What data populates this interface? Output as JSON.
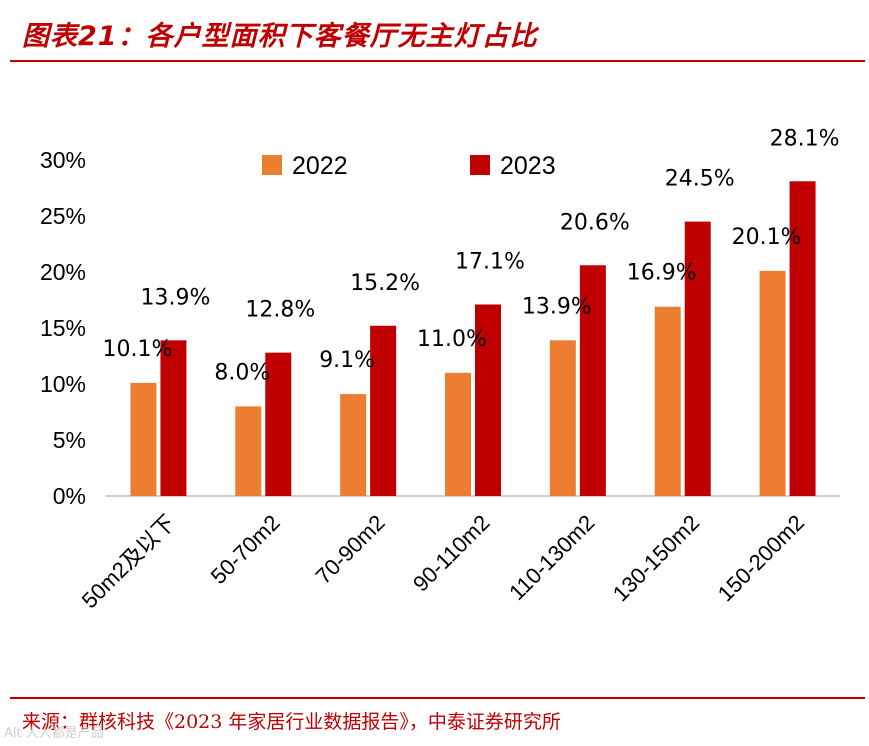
{
  "title": "图表21：各户型面积下客餐厅无主灯占比",
  "source": "来源：群核科技《2023 年家居行业数据报告》，中泰证券研究所",
  "watermark": "Alt 人人都是产品",
  "colors": {
    "brand": "#c00000",
    "s2022": "#ed7d31",
    "s2023": "#c00000"
  },
  "chart_data": {
    "type": "bar",
    "title": "各户型面积下客餐厅无主灯占比",
    "xlabel": "",
    "ylabel": "",
    "ylim": [
      0,
      30
    ],
    "yticks": [
      "0%",
      "5%",
      "10%",
      "15%",
      "20%",
      "25%",
      "30%"
    ],
    "yticks_values": [
      0,
      5,
      10,
      15,
      20,
      25,
      30
    ],
    "grid": false,
    "legend": "top",
    "categories": [
      "50m2及以下",
      "50-70m2",
      "70-90m2",
      "90-110m2",
      "110-130m2",
      "130-150m2",
      "150-200m2"
    ],
    "series": [
      {
        "name": "2022",
        "values": [
          10.1,
          8.0,
          9.1,
          11.0,
          13.9,
          16.9,
          20.1
        ],
        "labels": [
          "10.1%",
          "8.0%",
          "9.1%",
          "11.0%",
          "13.9%",
          "16.9%",
          "20.1%"
        ]
      },
      {
        "name": "2023",
        "values": [
          13.9,
          12.8,
          15.2,
          17.1,
          20.6,
          24.5,
          28.1
        ],
        "labels": [
          "13.9%",
          "12.8%",
          "15.2%",
          "17.1%",
          "20.6%",
          "24.5%",
          "28.1%"
        ]
      }
    ]
  }
}
